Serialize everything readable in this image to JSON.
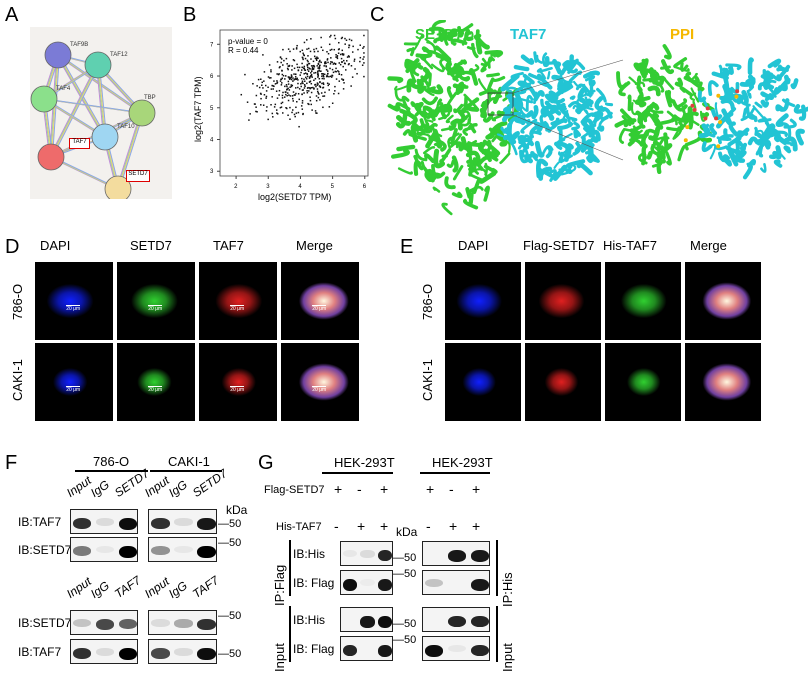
{
  "panels": {
    "A": "A",
    "B": "B",
    "C": "C",
    "D": "D",
    "E": "E",
    "F": "F",
    "G": "G"
  },
  "network": {
    "nodes": [
      "TAF9B",
      "TAF12",
      "TAF4",
      "TBP",
      "TAF10",
      "TAF7",
      "SETD7"
    ],
    "colors": [
      "#7b7bd6",
      "#5fd0b0",
      "#8be08b",
      "#a8d67a",
      "#9fd6f2",
      "#ee6b6b",
      "#f3dc9e"
    ]
  },
  "scatter": {
    "annotation1": "p-value = 0",
    "annotation2": "R = 0.44",
    "xlabel": "log2(SETD7 TPM)",
    "ylabel": "log2(TAF7 TPM)",
    "xticks": [
      "2",
      "3",
      "4",
      "5",
      "6"
    ],
    "yticks": [
      "3",
      "4",
      "5",
      "6",
      "7"
    ],
    "xlim": [
      1.5,
      6.1
    ],
    "ylim": [
      2.85,
      7.45
    ]
  },
  "structure": {
    "label1": "SETD7",
    "label2": "TAF7",
    "label3": "PPI",
    "color1": "#33cc33",
    "color2": "#22c4d4",
    "color3": "#f5b800"
  },
  "D": {
    "columns": [
      "DAPI",
      "SETD7",
      "TAF7",
      "Merge"
    ],
    "rows": [
      "786-O",
      "CAKI-1"
    ],
    "scalebar": "20 μm"
  },
  "E": {
    "columns": [
      "DAPI",
      "Flag-SETD7",
      "His-TAF7",
      "Merge"
    ],
    "rows": [
      "786-O",
      "CAKI-1"
    ]
  },
  "F": {
    "cell_lines": [
      "786-O",
      "CAKI-1"
    ],
    "lanes_top": [
      "Input",
      "IgG",
      "SETD7"
    ],
    "lanes_bottom": [
      "Input",
      "IgG",
      "TAF7"
    ],
    "blots": [
      "IB:TAF7",
      "IB:SETD7",
      "IB:SETD7",
      "IB:TAF7"
    ],
    "kda": "kDa",
    "marker": "50"
  },
  "G": {
    "cell_line": "HEK-293T",
    "row1_label": "Flag-SETD7",
    "row1_left": [
      "+",
      "-",
      "+"
    ],
    "row1_right": [
      "+",
      "-",
      "+"
    ],
    "row2_label": "His-TAF7",
    "row2_left": [
      "-",
      "+",
      "+"
    ],
    "row2_right": [
      "-",
      "+",
      "+"
    ],
    "blots": [
      "IB:His",
      "IB: Flag",
      "IB:His",
      "IB: Flag"
    ],
    "ip_flag": "IP:Flag",
    "ip_his": "IP:His",
    "input": "Input",
    "kda": "kDa",
    "marker": "50"
  }
}
